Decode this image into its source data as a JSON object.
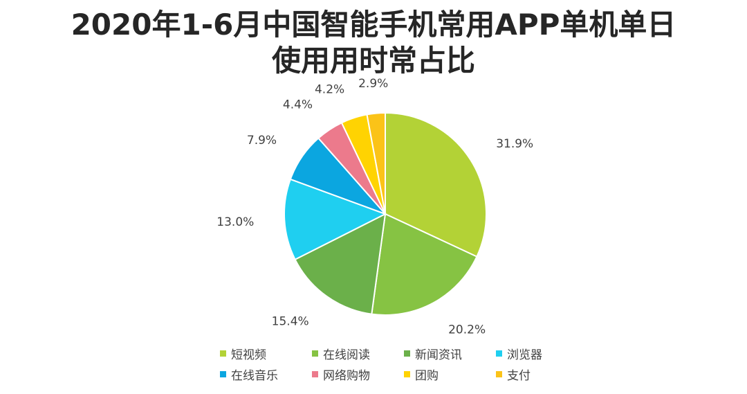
{
  "title_lines": [
    "2020年1-6月中国智能手机常用APP单机单日",
    "使用用时常占比"
  ],
  "chart_data": {
    "type": "pie",
    "title": "2020年1-6月中国智能手机常用APP单机单日使用用时常占比",
    "legend_placement": "bottom",
    "start_angle_deg": 0,
    "direction": "clockwise",
    "slices": [
      {
        "label": "短视频",
        "value": 31.9,
        "display": "31.9%",
        "color": "#b3d236"
      },
      {
        "label": "在线阅读",
        "value": 20.2,
        "display": "20.2%",
        "color": "#86c343"
      },
      {
        "label": "新闻资讯",
        "value": 15.4,
        "display": "15.4%",
        "color": "#6bb04a"
      },
      {
        "label": "浏览器",
        "value": 13.0,
        "display": "13.0%",
        "color": "#1fcff0"
      },
      {
        "label": "在线音乐",
        "value": 7.9,
        "display": "7.9%",
        "color": "#0ba6e0"
      },
      {
        "label": "网络购物",
        "value": 4.4,
        "display": "4.4%",
        "color": "#ec7a8c"
      },
      {
        "label": "团购",
        "value": 4.2,
        "display": "4.2%",
        "color": "#ffd302"
      },
      {
        "label": "支付",
        "value": 2.9,
        "display": "2.9%",
        "color": "#fbc318"
      }
    ]
  }
}
